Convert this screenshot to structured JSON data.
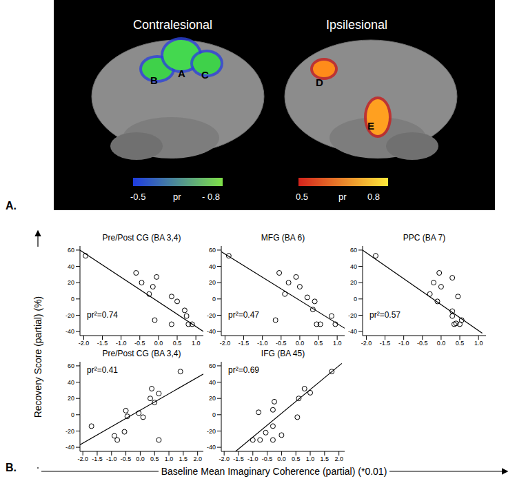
{
  "figure": {
    "panel_labels": [
      "A.",
      "B."
    ],
    "y_label": "Recovery Score (partial) (%)",
    "x_label": "Baseline Mean Imaginary Coherence (partial) (*0.01)"
  },
  "brain_panel": {
    "hemispheres": [
      {
        "title": "Contralesional",
        "regions": [
          {
            "label": "B",
            "color": "#3fd14a"
          },
          {
            "label": "A",
            "color": "#44d84f"
          },
          {
            "label": "C",
            "color": "#3fd14a"
          }
        ]
      },
      {
        "title": "Ipsilesional",
        "regions": [
          {
            "label": "D",
            "color": "#ff8c1a"
          },
          {
            "label": "E",
            "color": "#ffa020"
          }
        ]
      }
    ],
    "colorbars": [
      {
        "low": "-0.5",
        "label": "pr",
        "high": "- 0.8",
        "colors": [
          "#1e3ce0",
          "#7fe048"
        ]
      },
      {
        "low": "0.5",
        "label": "pr",
        "high": "0.8",
        "colors": [
          "#d4231c",
          "#ffe83a"
        ]
      }
    ]
  },
  "chart_data": [
    {
      "type": "scatter",
      "title": "Pre/Post CG (BA 3,4)",
      "annotation": "pr²=0.74",
      "marker": "circle_open",
      "color": "#000000",
      "x": [
        -1.95,
        -0.6,
        -0.45,
        -0.25,
        -0.15,
        -0.05,
        -0.1,
        0.35,
        0.5,
        0.35,
        0.7,
        0.75,
        0.8,
        0.9
      ],
      "y": [
        53,
        32,
        20,
        6,
        15,
        27,
        -26,
        3,
        -3,
        -31,
        -14,
        -21,
        -31,
        -31
      ],
      "fit_line": {
        "x": [
          -2.1,
          1.2
        ],
        "y": [
          60,
          -40
        ]
      },
      "xlim": [
        -2.1,
        1.2
      ],
      "ylim": [
        -45,
        65
      ],
      "xticks": [
        {
          "value": -2,
          "label": "-2.0"
        },
        {
          "value": -1.5,
          "label": "-1.5"
        },
        {
          "value": -1,
          "label": "-1.0"
        },
        {
          "value": -0.5,
          "label": "-0.5"
        },
        {
          "value": 0,
          "label": "0.0"
        },
        {
          "value": 0.5,
          "label": "0.5"
        },
        {
          "value": 1,
          "label": "1.0"
        }
      ],
      "yticks": [
        -40,
        -20,
        0,
        20,
        40,
        60
      ],
      "grid": false
    },
    {
      "type": "scatter",
      "title": "MFG (BA 6)",
      "annotation": "pr²=0.47",
      "marker": "circle_open",
      "color": "#000000",
      "x": [
        -1.9,
        -0.55,
        -0.65,
        -0.4,
        -0.3,
        -0.1,
        0.0,
        0.2,
        0.35,
        0.4,
        0.45,
        0.55,
        0.85,
        0.95
      ],
      "y": [
        53,
        32,
        -26,
        6,
        20,
        27,
        15,
        2,
        -13,
        -3,
        -31,
        -31,
        -21,
        -31
      ],
      "fit_line": {
        "x": [
          -2.1,
          1.2
        ],
        "y": [
          58,
          -36
        ]
      },
      "xlim": [
        -2.1,
        1.2
      ],
      "ylim": [
        -45,
        65
      ],
      "xticks": [
        {
          "value": -2,
          "label": "-2.0"
        },
        {
          "value": -1.5,
          "label": "-1.5"
        },
        {
          "value": -1,
          "label": "-1.0"
        },
        {
          "value": -0.5,
          "label": "-0.5"
        },
        {
          "value": 0,
          "label": "0.0"
        },
        {
          "value": 0.5,
          "label": "0.5"
        },
        {
          "value": 1,
          "label": "1.0"
        }
      ],
      "yticks": [
        -40,
        -20,
        0,
        20,
        40,
        60
      ],
      "grid": false
    },
    {
      "type": "scatter",
      "title": "PPC (BA 7)",
      "annotation": "pr²=0.57",
      "marker": "circle_open",
      "color": "#000000",
      "x": [
        -1.75,
        -0.3,
        -0.2,
        -0.1,
        -0.05,
        0.0,
        0.3,
        0.3,
        0.3,
        0.35,
        0.4,
        0.45,
        0.5,
        0.55
      ],
      "y": [
        53,
        6,
        20,
        -3,
        32,
        15,
        26,
        -15,
        -21,
        -31,
        -30,
        3,
        -31,
        -26
      ],
      "fit_line": {
        "x": [
          -2.1,
          1.1
        ],
        "y": [
          60,
          -42
        ]
      },
      "xlim": [
        -2.1,
        1.2
      ],
      "ylim": [
        -45,
        65
      ],
      "xticks": [
        {
          "value": -2,
          "label": "-2.0"
        },
        {
          "value": -1.5,
          "label": "-1.5"
        },
        {
          "value": -1,
          "label": "-1.0"
        },
        {
          "value": -0.5,
          "label": "-0.5"
        },
        {
          "value": 0,
          "label": "0.0"
        },
        {
          "value": 0.5,
          "label": "0.5"
        },
        {
          "value": 1,
          "label": "1.0"
        }
      ],
      "yticks": [
        -40,
        -20,
        0,
        20,
        40,
        60
      ],
      "grid": false
    },
    {
      "type": "scatter",
      "title": "Pre/Post CG (BA 3,4)",
      "annotation": "pr²=0.41",
      "marker": "circle_open",
      "color": "#000000",
      "x": [
        -1.7,
        -0.9,
        -0.8,
        -0.55,
        -0.5,
        -0.45,
        -0.05,
        0.1,
        0.35,
        0.4,
        0.5,
        0.65,
        0.65,
        1.4
      ],
      "y": [
        -14,
        -26,
        -31,
        -21,
        5,
        -2,
        2,
        -3,
        20,
        32,
        15,
        26,
        -31,
        53
      ],
      "fit_line": {
        "x": [
          -2.1,
          2.2
        ],
        "y": [
          -37,
          50
        ]
      },
      "xlim": [
        -2.1,
        2.2
      ],
      "ylim": [
        -45,
        65
      ],
      "xticks": [
        {
          "value": -2,
          "label": "-2.0"
        },
        {
          "value": -1.5,
          "label": "-1.5"
        },
        {
          "value": -1,
          "label": "-1.0"
        },
        {
          "value": -0.5,
          "label": "-0.5"
        },
        {
          "value": 0,
          "label": "0.0"
        },
        {
          "value": 0.5,
          "label": "0.5"
        },
        {
          "value": 1,
          "label": "1.0"
        },
        {
          "value": 1.5,
          "label": "1.5"
        },
        {
          "value": 2,
          "label": "2.0"
        }
      ],
      "yticks": [
        -40,
        -20,
        0,
        20,
        40,
        60
      ],
      "grid": false
    },
    {
      "type": "scatter",
      "title": "IFG (BA 45)",
      "annotation": "pr²=0.69",
      "marker": "circle_open",
      "color": "#000000",
      "x": [
        -1.0,
        -0.8,
        -0.75,
        -0.55,
        -0.3,
        -0.3,
        -0.25,
        0.0,
        -0.3,
        0.55,
        0.6,
        0.8,
        1.0,
        1.75
      ],
      "y": [
        -31,
        3,
        -31,
        -22,
        -14,
        6,
        16,
        -25,
        -31,
        -3,
        20,
        32,
        27,
        53
      ],
      "fit_line": {
        "x": [
          -1.6,
          2.1
        ],
        "y": [
          -45,
          63
        ]
      },
      "xlim": [
        -2.1,
        2.2
      ],
      "ylim": [
        -45,
        65
      ],
      "xticks": [
        {
          "value": -2,
          "label": "-2.0"
        },
        {
          "value": -1.5,
          "label": "-1.5"
        },
        {
          "value": -1,
          "label": "-1.0"
        },
        {
          "value": -0.5,
          "label": "-0.5"
        },
        {
          "value": 0,
          "label": "0.0"
        },
        {
          "value": 0.5,
          "label": "0.5"
        },
        {
          "value": 1,
          "label": "1.0"
        },
        {
          "value": 1.5,
          "label": "1.5"
        },
        {
          "value": 2,
          "label": "2.0"
        }
      ],
      "yticks": [
        -40,
        -20,
        0,
        20,
        40,
        60
      ],
      "grid": false
    }
  ]
}
